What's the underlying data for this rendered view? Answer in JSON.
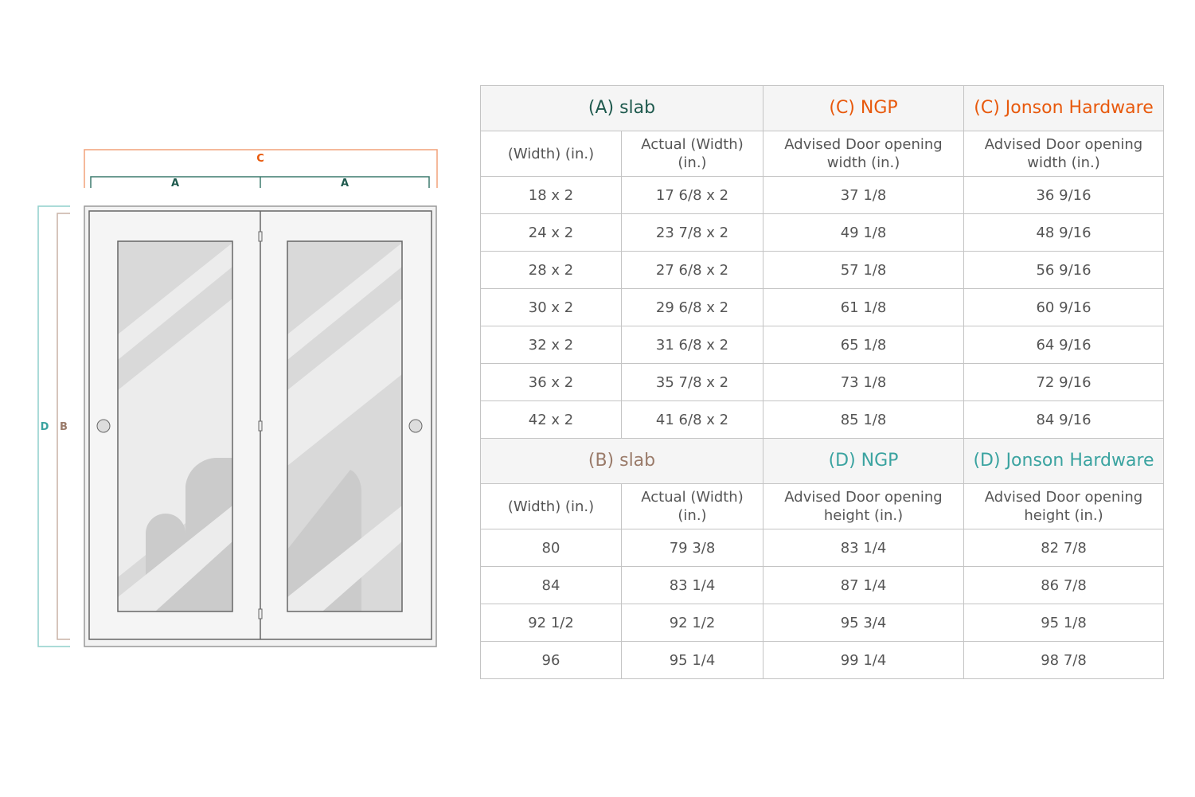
{
  "colors": {
    "A": "#1f5a4e",
    "B": "#9a7b6a",
    "C": "#e8590c",
    "D": "#3aa3a0"
  },
  "diagram": {
    "labels": {
      "A": "A",
      "B": "B",
      "C": "C",
      "D": "D"
    }
  },
  "width_table": {
    "headers": [
      "(A) slab",
      "(C) NGP",
      "(C) Jonson Hardware"
    ],
    "subheaders": [
      "(Width) (in.)",
      "Actual (Width) (in.)",
      "Advised Door opening width (in.)",
      "Advised Door opening width (in.)"
    ],
    "rows": [
      [
        "18 x 2",
        "17 6/8 x 2",
        "37 1/8",
        "36 9/16"
      ],
      [
        "24 x 2",
        "23 7/8 x 2",
        "49 1/8",
        "48 9/16"
      ],
      [
        "28 x 2",
        "27 6/8 x 2",
        "57 1/8",
        "56 9/16"
      ],
      [
        "30 x 2",
        "29 6/8 x 2",
        "61 1/8",
        "60 9/16"
      ],
      [
        "32 x 2",
        "31 6/8 x 2",
        "65 1/8",
        "64 9/16"
      ],
      [
        "36 x 2",
        "35 7/8 x 2",
        "73 1/8",
        "72 9/16"
      ],
      [
        "42 x 2",
        "41 6/8 x 2",
        "85 1/8",
        "84 9/16"
      ]
    ]
  },
  "height_table": {
    "headers": [
      "(B) slab",
      "(D) NGP",
      "(D) Jonson Hardware"
    ],
    "subheaders": [
      "(Width) (in.)",
      "Actual (Width) (in.)",
      "Advised Door opening height (in.)",
      "Advised Door opening height (in.)"
    ],
    "rows": [
      [
        "80",
        "79 3/8",
        "83 1/4",
        "82 7/8"
      ],
      [
        "84",
        "83 1/4",
        "87 1/4",
        "86 7/8"
      ],
      [
        "92 1/2",
        "92 1/2",
        "95 3/4",
        "95 1/8"
      ],
      [
        "96",
        "95 1/4",
        "99 1/4",
        "98 7/8"
      ]
    ]
  }
}
